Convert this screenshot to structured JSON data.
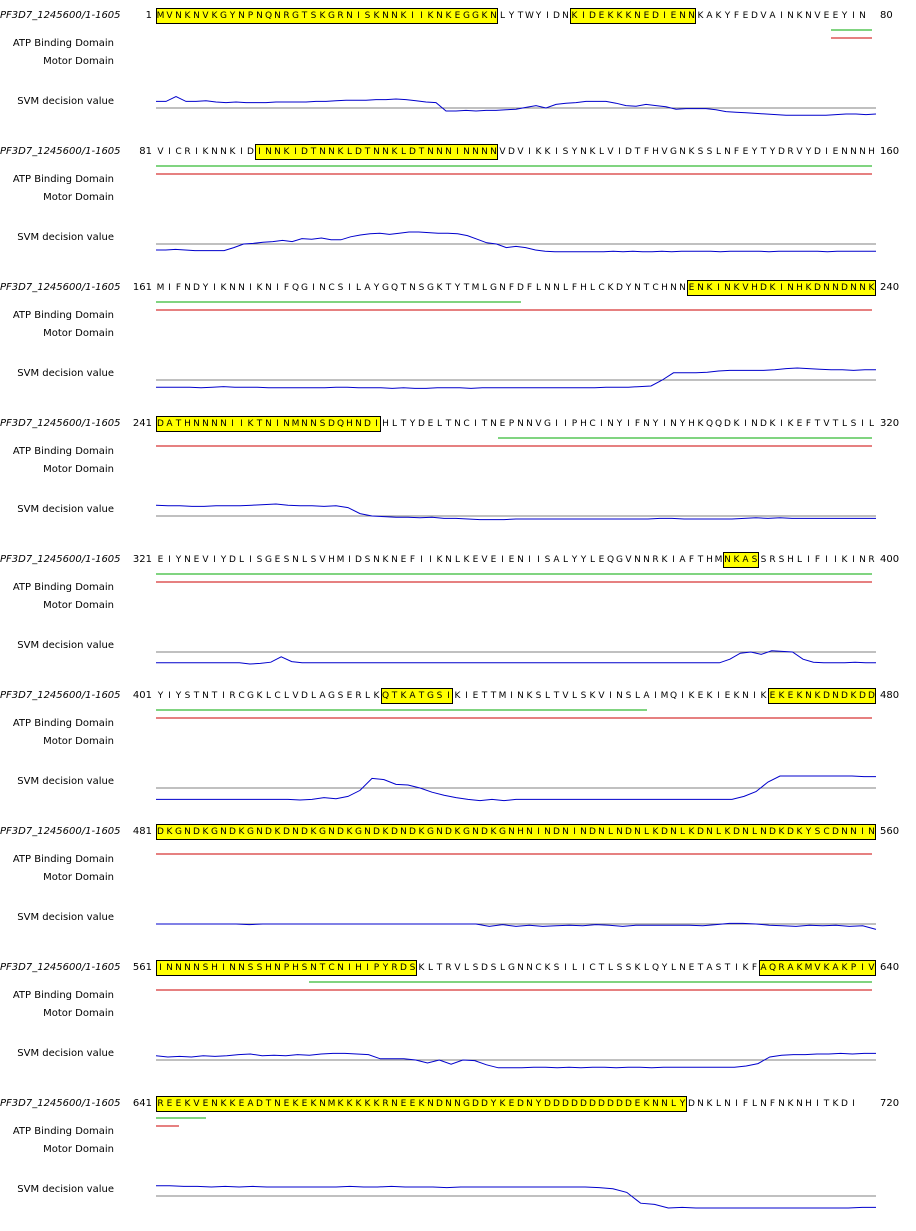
{
  "labels": {
    "atp": "ATP Binding Domain",
    "motor": "Motor Domain",
    "svm": "SVM decision value"
  },
  "colors": {
    "highlight": "#ffff00",
    "atp_line": "#00aa00",
    "motor_line": "#cc0000",
    "svm_line": "#0000cc",
    "baseline": "#808080"
  },
  "blocks": [
    {
      "name": "PF3D7_1245600/1-1605",
      "start": "1",
      "end": "80",
      "seq": "MVNKNVKGYNPNQNRGTSKGRNISKNNKIIKNKEGGKNLYTWYIDNKIDEKKKNEDIENNKAKYFEDVAINKNVEEYIN",
      "highlights": [
        [
          0,
          37
        ],
        [
          46,
          59
        ]
      ],
      "atp": [
        [
          75,
          79
        ]
      ],
      "motor": [
        [
          75,
          79
        ]
      ],
      "svm": [
        0.55,
        0.55,
        0.95,
        0.55,
        0.55,
        0.6,
        0.5,
        0.45,
        0.5,
        0.45,
        0.45,
        0.45,
        0.5,
        0.5,
        0.5,
        0.5,
        0.55,
        0.55,
        0.6,
        0.65,
        0.65,
        0.65,
        0.7,
        0.7,
        0.75,
        0.7,
        0.6,
        0.5,
        0.45,
        -0.25,
        -0.25,
        -0.2,
        -0.25,
        -0.2,
        -0.2,
        -0.15,
        -0.1,
        0.05,
        0.2,
        0.0,
        0.3,
        0.4,
        0.45,
        0.55,
        0.55,
        0.55,
        0.4,
        0.2,
        0.15,
        0.3,
        0.2,
        0.1,
        -0.1,
        -0.05,
        -0.05,
        -0.05,
        -0.15,
        -0.3,
        -0.35,
        -0.4,
        -0.45,
        -0.5,
        -0.55,
        -0.6,
        -0.6,
        -0.6,
        -0.6,
        -0.6,
        -0.55,
        -0.5,
        -0.5,
        -0.55,
        -0.5
      ]
    },
    {
      "name": "PF3D7_1245600/1-1605",
      "start": "81",
      "end": "160",
      "seq": "VICRIKNNKIDINNKIDTNNKLDTNNKLDTNNNINNNNVDVIKKISYNKLVIDTFHVGNKSSLNFEYTYDRVYDIENNNH",
      "highlights": [
        [
          11,
          37
        ]
      ],
      "atp": [
        [
          0,
          79
        ]
      ],
      "motor": [
        [
          0,
          79
        ]
      ],
      "svm": [
        -0.5,
        -0.5,
        -0.45,
        -0.5,
        -0.55,
        -0.55,
        -0.55,
        -0.55,
        -0.3,
        0.0,
        0.05,
        0.15,
        0.2,
        0.3,
        0.2,
        0.45,
        0.4,
        0.5,
        0.35,
        0.35,
        0.6,
        0.75,
        0.85,
        0.9,
        0.8,
        0.9,
        1.0,
        1.0,
        0.95,
        0.9,
        0.9,
        0.85,
        0.7,
        0.4,
        0.1,
        0.0,
        -0.3,
        -0.2,
        -0.3,
        -0.5,
        -0.6,
        -0.65,
        -0.65,
        -0.65,
        -0.65,
        -0.65,
        -0.65,
        -0.6,
        -0.65,
        -0.6,
        -0.65,
        -0.65,
        -0.6,
        -0.65,
        -0.6,
        -0.6,
        -0.6,
        -0.6,
        -0.65,
        -0.6,
        -0.6,
        -0.6,
        -0.6,
        -0.65,
        -0.6,
        -0.6,
        -0.6,
        -0.6,
        -0.6,
        -0.65,
        -0.6,
        -0.6,
        -0.6,
        -0.6,
        -0.6
      ]
    },
    {
      "name": "PF3D7_1245600/1-1605",
      "start": "161",
      "end": "240",
      "seq": "MIFNDYIKNNIKNIFQGINCSILAYGQTNSGKTYTMLGNFDFLNNLFHLCKDYNTCHNNENKINKVHDKINHKDNNDNNK",
      "highlights": [
        [
          59,
          79
        ]
      ],
      "atp": [
        [
          0,
          40
        ]
      ],
      "motor": [
        [
          0,
          79
        ]
      ],
      "svm": [
        -0.6,
        -0.6,
        -0.6,
        -0.6,
        -0.65,
        -0.6,
        -0.55,
        -0.6,
        -0.6,
        -0.6,
        -0.65,
        -0.65,
        -0.65,
        -0.65,
        -0.65,
        -0.65,
        -0.6,
        -0.6,
        -0.65,
        -0.65,
        -0.65,
        -0.7,
        -0.65,
        -0.7,
        -0.7,
        -0.65,
        -0.65,
        -0.65,
        -0.7,
        -0.65,
        -0.65,
        -0.65,
        -0.65,
        -0.65,
        -0.65,
        -0.65,
        -0.65,
        -0.65,
        -0.65,
        -0.65,
        -0.6,
        -0.6,
        -0.6,
        -0.55,
        -0.5,
        0.0,
        0.6,
        0.6,
        0.6,
        0.65,
        0.75,
        0.8,
        0.8,
        0.8,
        0.8,
        0.85,
        0.95,
        1.0,
        0.95,
        0.9,
        0.85,
        0.85,
        0.8,
        0.85,
        0.85
      ]
    },
    {
      "name": "PF3D7_1245600/1-1605",
      "start": "241",
      "end": "320",
      "seq": "DATHNNNNIIKTNINMNNSDQHNDIHLTYDELTNCITNEPNNVGIIPHCINYIFNYINYHKQQDKINDKIKEFTVTLSIL",
      "highlights": [
        [
          0,
          24
        ]
      ],
      "atp": [
        [
          38,
          79
        ]
      ],
      "motor": [
        [
          0,
          79
        ]
      ],
      "svm": [
        0.9,
        0.85,
        0.85,
        0.8,
        0.8,
        0.85,
        0.85,
        0.85,
        0.9,
        0.95,
        1.0,
        0.9,
        0.85,
        0.85,
        0.8,
        0.85,
        0.7,
        0.2,
        0.0,
        -0.05,
        -0.1,
        -0.1,
        -0.15,
        -0.1,
        -0.2,
        -0.2,
        -0.25,
        -0.3,
        -0.3,
        -0.3,
        -0.25,
        -0.25,
        -0.25,
        -0.25,
        -0.25,
        -0.25,
        -0.25,
        -0.25,
        -0.25,
        -0.25,
        -0.25,
        -0.25,
        -0.2,
        -0.2,
        -0.25,
        -0.25,
        -0.25,
        -0.25,
        -0.25,
        -0.2,
        -0.15,
        -0.2,
        -0.15,
        -0.2,
        -0.2,
        -0.2,
        -0.2,
        -0.2,
        -0.2,
        -0.2,
        -0.2
      ]
    },
    {
      "name": "PF3D7_1245600/1-1605",
      "start": "321",
      "end": "400",
      "seq": "EIYNEVIYDLISGESNLSVHMIDSNKNEFIIKNLKEVEIENIISALYYLEQGVNNRKIAFTHMNKASSRSHLIFIIKINR",
      "highlights": [
        [
          63,
          66
        ]
      ],
      "atp": [
        [
          0,
          79
        ]
      ],
      "motor": [
        [
          0,
          79
        ]
      ],
      "svm": [
        -0.9,
        -0.9,
        -0.9,
        -0.9,
        -0.9,
        -0.9,
        -0.9,
        -0.9,
        -0.9,
        -1.0,
        -0.95,
        -0.85,
        -0.4,
        -0.8,
        -0.9,
        -0.9,
        -0.9,
        -0.9,
        -0.9,
        -0.9,
        -0.9,
        -0.9,
        -0.9,
        -0.9,
        -0.9,
        -0.9,
        -0.9,
        -0.9,
        -0.9,
        -0.9,
        -0.9,
        -0.9,
        -0.9,
        -0.9,
        -0.9,
        -0.9,
        -0.9,
        -0.9,
        -0.9,
        -0.9,
        -0.9,
        -0.9,
        -0.9,
        -0.9,
        -0.9,
        -0.9,
        -0.9,
        -0.9,
        -0.9,
        -0.9,
        -0.9,
        -0.9,
        -0.9,
        -0.9,
        -0.9,
        -0.6,
        -0.1,
        0.0,
        -0.2,
        0.1,
        0.05,
        0.0,
        -0.6,
        -0.85,
        -0.9,
        -0.9,
        -0.9,
        -0.85,
        -0.9,
        -0.9
      ]
    },
    {
      "name": "PF3D7_1245600/1-1605",
      "start": "401",
      "end": "480",
      "seq": "YIYSTNTIRCGKLCLVDLAGSERLKQTKATGSIKIETTMINKSLTVLSKVINSLAIMQIKEKIEKNIKEKEKNKDNDKDD",
      "highlights": [
        [
          25,
          32
        ],
        [
          68,
          79
        ]
      ],
      "atp": [
        [
          0,
          54
        ]
      ],
      "motor": [
        [
          0,
          79
        ]
      ],
      "svm": [
        -0.95,
        -0.95,
        -0.95,
        -0.95,
        -0.95,
        -0.95,
        -0.95,
        -0.95,
        -0.95,
        -0.95,
        -0.95,
        -0.95,
        -1.0,
        -0.95,
        -0.8,
        -0.9,
        -0.7,
        -0.2,
        0.8,
        0.7,
        0.3,
        0.25,
        0.0,
        -0.35,
        -0.6,
        -0.8,
        -0.95,
        -1.05,
        -0.95,
        -1.05,
        -0.95,
        -0.95,
        -0.95,
        -0.95,
        -0.95,
        -0.95,
        -0.95,
        -0.95,
        -0.95,
        -0.95,
        -0.95,
        -0.95,
        -0.95,
        -0.95,
        -0.95,
        -0.95,
        -0.95,
        -0.95,
        -0.95,
        -0.7,
        -0.3,
        0.5,
        1.0,
        1.0,
        1.0,
        1.0,
        1.0,
        1.0,
        1.0,
        0.95,
        0.95
      ]
    },
    {
      "name": "PF3D7_1245600/1-1605",
      "start": "481",
      "end": "560",
      "seq": "DKGNDKGNDKGNDKDNDKGNDKGNDKDNDKGNDKGNDKGNHNINDNINDNLNDNLKDNLKDNLKDNLNDKDKYSCDNNIN",
      "highlights": [
        [
          0,
          79
        ]
      ],
      "atp": [],
      "motor": [
        [
          0,
          79
        ]
      ],
      "svm": [
        0.0,
        0.0,
        0.0,
        0.0,
        0.0,
        0.0,
        0.0,
        -0.05,
        0.0,
        0.0,
        0.0,
        0.0,
        0.0,
        0.0,
        0.0,
        0.0,
        0.0,
        0.0,
        0.0,
        0.0,
        0.0,
        0.0,
        0.0,
        0.0,
        0.0,
        -0.2,
        -0.05,
        -0.2,
        -0.1,
        -0.2,
        -0.15,
        -0.1,
        -0.15,
        -0.05,
        -0.1,
        -0.2,
        -0.1,
        -0.1,
        -0.1,
        -0.1,
        -0.1,
        -0.15,
        -0.05,
        0.05,
        0.05,
        0.0,
        -0.1,
        -0.15,
        -0.2,
        -0.1,
        -0.15,
        -0.1,
        -0.2,
        -0.15,
        -0.45
      ]
    },
    {
      "name": "PF3D7_1245600/1-1605",
      "start": "561",
      "end": "640",
      "seq": "INNNNSHINNSSHNPHSNTCNIHIPYRDSKLTRVLSDSLGNNCKSILICTLSSKLQYLNETASTIKFAQRAKMVKAKPIV",
      "highlights": [
        [
          0,
          28
        ],
        [
          67,
          79
        ]
      ],
      "atp": [
        [
          17,
          79
        ]
      ],
      "motor": [
        [
          0,
          79
        ]
      ],
      "svm": [
        0.35,
        0.25,
        0.3,
        0.25,
        0.35,
        0.3,
        0.35,
        0.45,
        0.5,
        0.35,
        0.4,
        0.35,
        0.45,
        0.4,
        0.5,
        0.55,
        0.55,
        0.5,
        0.45,
        0.1,
        0.1,
        0.1,
        0.0,
        -0.25,
        0.0,
        -0.35,
        0.0,
        -0.05,
        -0.4,
        -0.65,
        -0.65,
        -0.65,
        -0.6,
        -0.6,
        -0.65,
        -0.6,
        -0.65,
        -0.6,
        -0.6,
        -0.65,
        -0.6,
        -0.6,
        -0.65,
        -0.6,
        -0.6,
        -0.6,
        -0.6,
        -0.6,
        -0.6,
        -0.6,
        -0.5,
        -0.3,
        0.25,
        0.4,
        0.45,
        0.45,
        0.5,
        0.5,
        0.55,
        0.5,
        0.55,
        0.55
      ]
    },
    {
      "name": "PF3D7_1245600/1-1605",
      "start": "641",
      "end": "720",
      "seq": "REEKVENKKEADTNEKEKNMKKKKKRNEEKNDNNGDDYKEDNYDDDDDDDDDDEKNNLYDNKLNIFLNFNKNHITKDI",
      "highlights": [
        [
          0,
          58
        ]
      ],
      "atp": [
        [
          0,
          5
        ]
      ],
      "motor": [
        [
          0,
          2
        ]
      ],
      "svm": [
        0.85,
        0.85,
        0.8,
        0.8,
        0.75,
        0.8,
        0.75,
        0.8,
        0.75,
        0.75,
        0.75,
        0.75,
        0.75,
        0.75,
        0.8,
        0.75,
        0.75,
        0.8,
        0.75,
        0.75,
        0.75,
        0.7,
        0.75,
        0.75,
        0.75,
        0.75,
        0.75,
        0.75,
        0.75,
        0.75,
        0.75,
        0.75,
        0.7,
        0.6,
        0.3,
        -0.6,
        -0.7,
        -1.0,
        -0.95,
        -1.0,
        -1.0,
        -1.0,
        -1.0,
        -1.0,
        -1.0,
        -1.0,
        -1.0,
        -1.0,
        -1.0,
        -1.0,
        -1.0,
        -0.95,
        -0.95
      ]
    }
  ]
}
